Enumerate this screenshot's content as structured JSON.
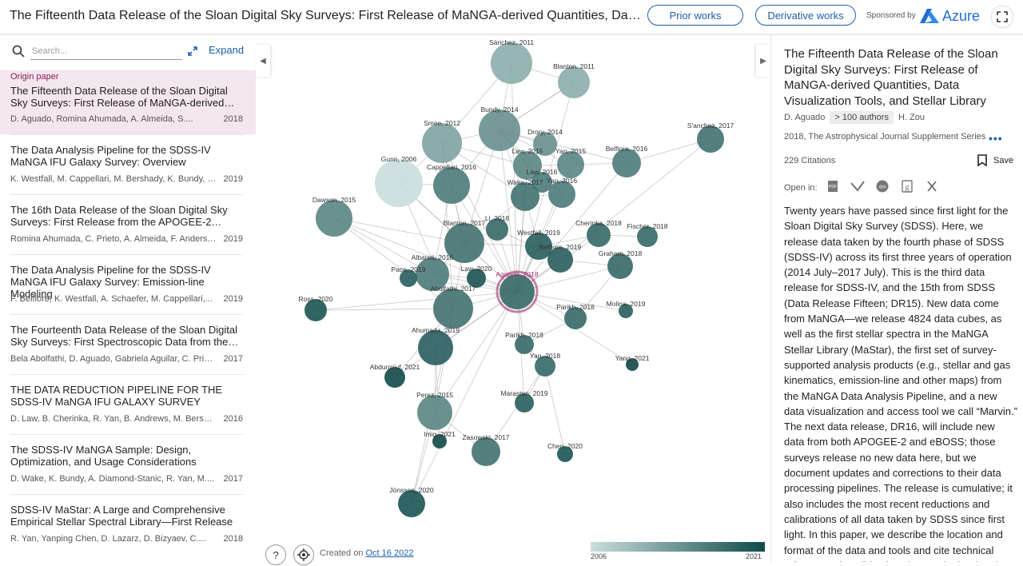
{
  "header": {
    "title": "The Fifteenth Data Release of the Sloan Digital Sky Surveys: First Release of MaNGA-derived Quantities, Data Visualization Tools, and Stellar Library",
    "prior_works": "Prior works",
    "derivative_works": "Derivative works",
    "sponsored_by": "Sponsored by",
    "sponsor_name": "Azure"
  },
  "sidebar": {
    "search_placeholder": "Search...",
    "expand_label": "Expand",
    "origin_tag": "Origin paper",
    "origin": {
      "title": "The Fifteenth Data Release of the Sloan Digital Sky Surveys: First Release of MaNGA-derived…",
      "authors": "D. Aguado, Romina Ahumada, A. Almeida, S....",
      "year": "2018"
    },
    "items": [
      {
        "title": "The Data Analysis Pipeline for the SDSS-IV MaNGA IFU Galaxy Survey: Overview",
        "authors": "K. Westfall, M. Cappellari, M. Bershady, K. Bundy, F....",
        "year": "2019"
      },
      {
        "title": "The 16th Data Release of the Sloan Digital Sky Surveys: First Release from the APOGEE-2…",
        "authors": "Romina Ahumada, C. Prieto, A. Almeida, F. Anders, ...",
        "year": "2019"
      },
      {
        "title": "The Data Analysis Pipeline for the SDSS-IV MaNGA IFU Galaxy Survey: Emission-line Modeling",
        "authors": "F. Belfiore, K. Westfall, A. Schaefer, M. Cappellari,...",
        "year": "2019"
      },
      {
        "title": "The Fourteenth Data Release of the Sloan Digital Sky Surveys: First Spectroscopic Data from the…",
        "authors": "Bela Abolfathi, D. Aguado, Gabriela Aguilar, C. Priet...",
        "year": "2017"
      },
      {
        "title": "THE DATA REDUCTION PIPELINE FOR THE SDSS-IV MaNGA IFU GALAXY SURVEY",
        "authors": "D. Law, B. Cherinka, R. Yan, B. Andrews, M. Bershad...",
        "year": "2016"
      },
      {
        "title": "The SDSS-IV MaNGA Sample: Design, Optimization, and Usage Considerations",
        "authors": "D. Wake, K. Bundy, A. Diamond-Stanic, R. Yan, M....",
        "year": "2017"
      },
      {
        "title": "SDSS-IV MaStar: A Large and Comprehensive Empirical Stellar Spectral Library—First Release",
        "authors": "R. Yan, Yanping Chen, D. Lazarz, D. Bizyaev, C....",
        "year": "2018"
      }
    ]
  },
  "graph": {
    "created_prefix": "Created on",
    "created_date": "Oct 16 2022",
    "legend_min": "2006",
    "legend_max": "2021",
    "nodes": [
      {
        "label": "Sánchez, 2011",
        "r": 26,
        "year": 2011
      },
      {
        "label": "Blanton, 2011",
        "r": 20,
        "year": 2011
      },
      {
        "label": "Smee, 2012",
        "r": 25,
        "year": 2012
      },
      {
        "label": "Bundy, 2014",
        "r": 26,
        "year": 2014
      },
      {
        "label": "Drory, 2014",
        "r": 15,
        "year": 2014
      },
      {
        "label": "S'anchez, 2017",
        "r": 17,
        "year": 2017
      },
      {
        "label": "Law, 2015",
        "r": 18,
        "year": 2015
      },
      {
        "label": "Yan, 2015",
        "r": 17,
        "year": 2015
      },
      {
        "label": "Belfiore, 2016",
        "r": 18,
        "year": 2016
      },
      {
        "label": "Gunn, 2006",
        "r": 30,
        "year": 2006
      },
      {
        "label": "Cappellari, 2016",
        "r": 23,
        "year": 2016
      },
      {
        "label": "Law, 2016",
        "r": 13,
        "year": 2016
      },
      {
        "label": "Wake, 2017",
        "r": 18,
        "year": 2017
      },
      {
        "label": "Yan, 2016",
        "r": 17,
        "year": 2016
      },
      {
        "label": "Dawson, 2015",
        "r": 23,
        "year": 2015
      },
      {
        "label": "Cherinka, 2018",
        "r": 15,
        "year": 2018
      },
      {
        "label": "Fischer, 2018",
        "r": 13,
        "year": 2018
      },
      {
        "label": "Li, 2018",
        "r": 14,
        "year": 2018
      },
      {
        "label": "Blanton, 2017",
        "r": 25,
        "year": 2017
      },
      {
        "label": "Westfall, 2019",
        "r": 17,
        "year": 2019
      },
      {
        "label": "Belfiore, 2019",
        "r": 16,
        "year": 2019
      },
      {
        "label": "Graham, 2018",
        "r": 16,
        "year": 2018
      },
      {
        "label": "Albareti, 2016",
        "r": 21,
        "year": 2016
      },
      {
        "label": "Pace, 2019",
        "r": 11,
        "year": 2019
      },
      {
        "label": "Law, 2020",
        "r": 12,
        "year": 2020
      },
      {
        "label": "Aguado, 2018",
        "r": 22,
        "year": 2018,
        "origin": true
      },
      {
        "label": "Abolfathi, 2017",
        "r": 25,
        "year": 2017
      },
      {
        "label": "Ross, 2020",
        "r": 14,
        "year": 2020
      },
      {
        "label": "Parikh, 2018",
        "r": 14,
        "year": 2018
      },
      {
        "label": "Molina, 2019",
        "r": 9,
        "year": 2019
      },
      {
        "label": "Parikh, 2018",
        "r": 12,
        "year": 2018
      },
      {
        "label": "Ahumada, 2019",
        "r": 22,
        "year": 2019
      },
      {
        "label": "Yan, 2018",
        "r": 13,
        "year": 2018
      },
      {
        "label": "Yang, 2021",
        "r": 8,
        "year": 2021
      },
      {
        "label": "Abdurro'uf, 2021",
        "r": 13,
        "year": 2021
      },
      {
        "label": "Maraston, 2019",
        "r": 12,
        "year": 2019
      },
      {
        "label": "Perez, 2015",
        "r": 22,
        "year": 2015
      },
      {
        "label": "Imig, 2021",
        "r": 9,
        "year": 2021
      },
      {
        "label": "Zasowski, 2017",
        "r": 18,
        "year": 2017
      },
      {
        "label": "Chen, 2020",
        "r": 10,
        "year": 2020
      },
      {
        "label": "Jönsson, 2020",
        "r": 17,
        "year": 2020
      }
    ]
  },
  "details": {
    "title": "The Fifteenth Data Release of the Sloan Digital Sky Surveys: First Release of MaNGA-derived Quantities, Data Visualization Tools, and Stellar Library",
    "first_author": "D. Aguado",
    "authors_badge": "> 100 authors",
    "last_author": "H. Zou",
    "venue": "2018, The Astrophysical Journal Supplement Series",
    "citations": "229 Citations",
    "save": "Save",
    "open_in": "Open in:",
    "abstract": "Twenty years have passed since first light for the Sloan Digital Sky Survey (SDSS). Here, we release data taken by the fourth phase of SDSS (SDSS-IV) across its first three years of operation (2014 July–2017 July). This is the third data release for SDSS-IV, and the 15th from SDSS (Data Release Fifteen; DR15). New data come from MaNGA—we release 4824 data cubes, as well as the first stellar spectra in the MaNGA Stellar Library (MaStar), the first set of survey-supported analysis products (e.g., stellar and gas kinematics, emission-line and other maps) from the MaNGA Data Analysis Pipeline, and a new data visualization and access tool we call “Marvin.” The next data release, DR16, will include new data from both APOGEE-2 and eBOSS; those surveys release no new data here, but we document updates and corrections to their data processing pipelines. The release is cumulative; it also includes the most recent reductions and calibrations of all data taken by SDSS since first light. In this paper, we describe the location and format of the data and tools and cite technical references describing how it was obtained and processed. The SDSS website"
  },
  "colors": {
    "accent": "#1f5fa8",
    "origin_bg": "#f3e6ee",
    "origin_ring": "#a0306e",
    "node_old": "#c9dedd",
    "node_new": "#0f4a49"
  }
}
